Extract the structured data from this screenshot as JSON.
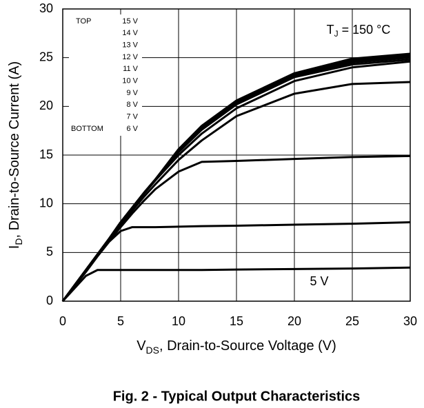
{
  "chart_data": {
    "type": "line",
    "title": "Fig. 2 - Typical Output Characteristics",
    "xlabel": [
      "V",
      "DS",
      ", Drain-to-Source Voltage (V)"
    ],
    "ylabel": [
      "I",
      "D",
      ", Drain-to-Source Current (A)"
    ],
    "annotation": [
      "T",
      "J",
      " = 150 °C"
    ],
    "legend_labels": [
      "TOP",
      "BOTTOM"
    ],
    "xlim": [
      0,
      30
    ],
    "ylim": [
      0,
      30
    ],
    "xticks": [
      0,
      5,
      10,
      15,
      20,
      25,
      30
    ],
    "yticks": [
      0,
      5,
      10,
      15,
      20,
      25,
      30
    ],
    "grid": true,
    "x": [
      0,
      1,
      2,
      3,
      4,
      5,
      6,
      7,
      8,
      10,
      12,
      15,
      20,
      25,
      30
    ],
    "series": [
      {
        "name": "15 V",
        "color": "#000000",
        "values": [
          0,
          1.6,
          3.2,
          4.8,
          6.4,
          8.1,
          9.6,
          11.1,
          12.5,
          15.6,
          18,
          20.6,
          23.4,
          24.9,
          25.4
        ]
      },
      {
        "name": "14 V",
        "color": "#000000",
        "values": [
          0,
          1.6,
          3.2,
          4.8,
          6.4,
          8.1,
          9.6,
          11.1,
          12.5,
          15.6,
          17.9,
          20.5,
          23.3,
          24.8,
          25.3
        ]
      },
      {
        "name": "13 V",
        "color": "#000000",
        "values": [
          0,
          1.6,
          3.2,
          4.8,
          6.4,
          8.1,
          9.6,
          11.1,
          12.5,
          15.5,
          17.9,
          20.5,
          23.3,
          24.7,
          25.2
        ]
      },
      {
        "name": "12 V",
        "color": "#000000",
        "values": [
          0,
          1.6,
          3.2,
          4.8,
          6.4,
          8.1,
          9.6,
          11.1,
          12.5,
          15.5,
          17.8,
          20.4,
          23.2,
          24.6,
          25.1
        ]
      },
      {
        "name": "11 V",
        "color": "#000000",
        "values": [
          0,
          1.6,
          3.2,
          4.8,
          6.4,
          8.1,
          9.6,
          11.1,
          12.5,
          15.4,
          17.7,
          20.3,
          23.1,
          24.5,
          25
        ]
      },
      {
        "name": "10 V",
        "color": "#000000",
        "values": [
          0,
          1.6,
          3.2,
          4.8,
          6.4,
          8.1,
          9.6,
          11.1,
          12.5,
          15.3,
          17.6,
          20.2,
          23,
          24.3,
          24.8
        ]
      },
      {
        "name": "9 V",
        "color": "#000000",
        "values": [
          0,
          1.6,
          3.2,
          4.8,
          6.4,
          8,
          9.5,
          11,
          12.4,
          15,
          17.2,
          19.8,
          22.6,
          24,
          24.6
        ]
      },
      {
        "name": "8 V",
        "color": "#000000",
        "values": [
          0,
          1.5,
          3.1,
          4.7,
          6.3,
          7.8,
          9.3,
          10.7,
          12,
          14.5,
          16.5,
          19,
          21.3,
          22.3,
          22.5
        ]
      },
      {
        "name": "7 V",
        "color": "#000000",
        "values": [
          0,
          1.5,
          3.1,
          4.7,
          6.2,
          7.6,
          9,
          10.3,
          11.5,
          13.3,
          14.3,
          14.4,
          14.6,
          14.8,
          14.9
        ]
      },
      {
        "name": "6 V",
        "color": "#000000",
        "values": [
          0,
          1.5,
          3,
          4.6,
          6.1,
          7.2,
          7.6,
          7.6,
          7.6,
          7.65,
          7.7,
          7.75,
          7.85,
          7.95,
          8.1
        ]
      },
      {
        "name": "5 V",
        "color": "#000000",
        "values": [
          0,
          1.3,
          2.6,
          3.2,
          3.2,
          3.2,
          3.2,
          3.2,
          3.2,
          3.2,
          3.2,
          3.25,
          3.3,
          3.35,
          3.45
        ]
      }
    ]
  }
}
